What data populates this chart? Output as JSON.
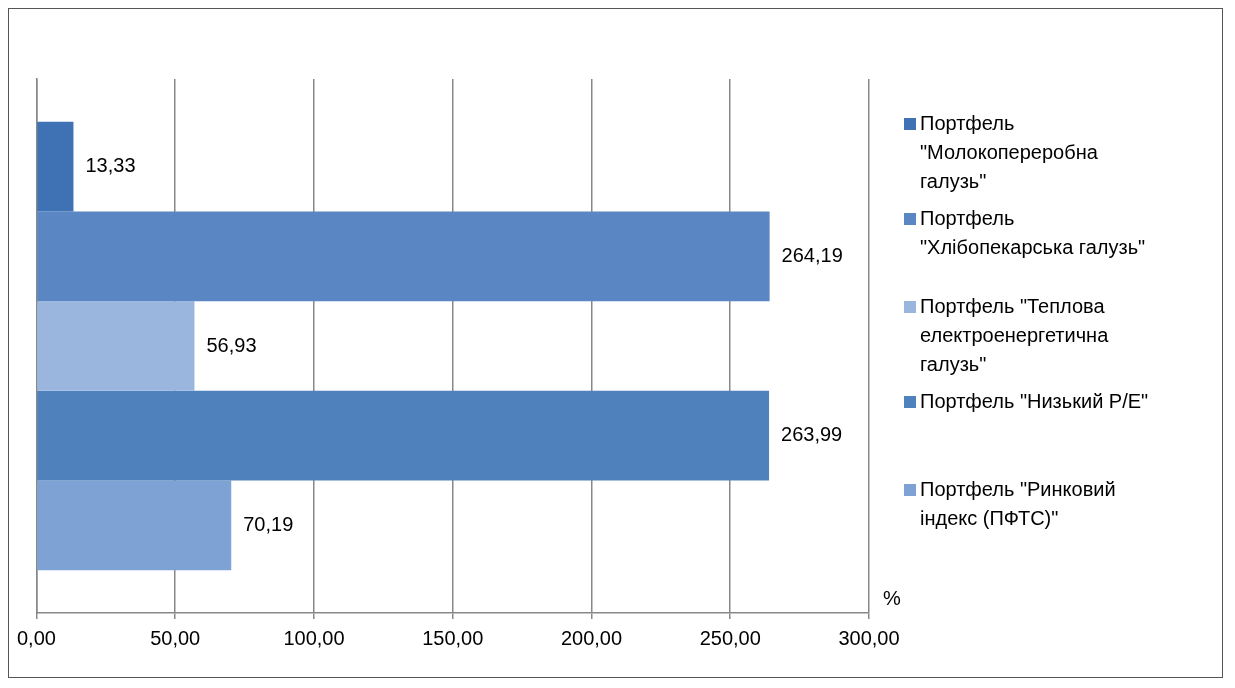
{
  "chart_data": {
    "type": "bar",
    "orientation": "horizontal",
    "xlabel": "%",
    "categories": [
      null
    ],
    "series": [
      {
        "name": "Портфель \"Молокопереробна галузь\"",
        "color": "#3f72b5",
        "values": [
          13.33
        ],
        "value_labels": [
          "13,33"
        ]
      },
      {
        "name": "Портфель \"Хлібопекарська галузь\"",
        "color": "#5a86c4",
        "values": [
          264.19
        ],
        "value_labels": [
          "264,19"
        ]
      },
      {
        "name": "Портфель \"Теплова електроенергетична галузь\"",
        "color": "#9ab6de",
        "values": [
          56.93
        ],
        "value_labels": [
          "56,93"
        ]
      },
      {
        "name": "Портфель \"Низький P/E\"",
        "color": "#4f81bd",
        "values": [
          263.99
        ],
        "value_labels": [
          "263,99"
        ]
      },
      {
        "name": "Портфель \"Ринковий індекс (ПФТС)\"",
        "color": "#7fa2d4",
        "values": [
          70.19
        ],
        "value_labels": [
          "70,19"
        ]
      }
    ],
    "xlim": [
      0,
      300
    ],
    "xticks": [
      {
        "value": 0,
        "label": "0,00"
      },
      {
        "value": 50,
        "label": "50,00"
      },
      {
        "value": 100,
        "label": "100,00"
      },
      {
        "value": 150,
        "label": "150,00"
      },
      {
        "value": 200,
        "label": "200,00"
      },
      {
        "value": 250,
        "label": "250,00"
      },
      {
        "value": 300,
        "label": "300,00"
      }
    ],
    "grid": "x",
    "legend": "right"
  }
}
